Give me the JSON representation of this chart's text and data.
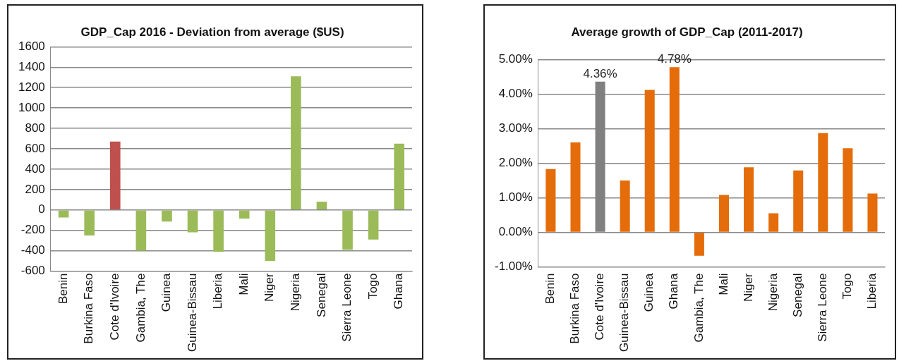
{
  "chart_data": [
    {
      "type": "bar",
      "title": "GDP_Cap 2016 - Deviation from average ($US)",
      "categories": [
        "Benin",
        "Burkina Faso",
        "Cote d'Ivoire",
        "Gambia, The",
        "Guinea",
        "Guinea-Bissau",
        "Liberia",
        "Mali",
        "Niger",
        "Nigeria",
        "Senegal",
        "Sierra Leone",
        "Togo",
        "Ghana"
      ],
      "values": [
        -75,
        -250,
        670,
        -400,
        -115,
        -220,
        -410,
        -85,
        -500,
        1310,
        82,
        -390,
        -290,
        650
      ],
      "colors": [
        "#9bbb59",
        "#9bbb59",
        "#c0504d",
        "#9bbb59",
        "#9bbb59",
        "#9bbb59",
        "#9bbb59",
        "#9bbb59",
        "#9bbb59",
        "#9bbb59",
        "#9bbb59",
        "#9bbb59",
        "#9bbb59",
        "#9bbb59"
      ],
      "ylim": [
        -600,
        1600
      ],
      "yticks": [
        -600,
        -400,
        -200,
        0,
        200,
        400,
        600,
        800,
        1000,
        1200,
        1400,
        1600
      ],
      "grid": "y"
    },
    {
      "type": "bar",
      "title": "Average growth of GDP_Cap (2011-2017)",
      "categories": [
        "Benin",
        "Burkina Faso",
        "Cote d'Ivoire",
        "Guinea-Bissau",
        "Guinea",
        "Ghana",
        "Gambia, The",
        "Mali",
        "Niger",
        "Nigeria",
        "Senegal",
        "Sierra Leone",
        "Togo",
        "Liberia"
      ],
      "values": [
        1.83,
        2.6,
        4.36,
        1.5,
        4.12,
        4.78,
        -0.68,
        1.08,
        1.88,
        0.55,
        1.79,
        2.87,
        2.43,
        1.12
      ],
      "colors": [
        "#e46c0a",
        "#e46c0a",
        "#808080",
        "#e46c0a",
        "#e46c0a",
        "#e46c0a",
        "#e46c0a",
        "#e46c0a",
        "#e46c0a",
        "#e46c0a",
        "#e46c0a",
        "#e46c0a",
        "#e46c0a",
        "#e46c0a"
      ],
      "value_labels": [
        null,
        null,
        "4.36%",
        null,
        null,
        "4.78%",
        null,
        null,
        null,
        null,
        null,
        null,
        null,
        null
      ],
      "ylim": [
        -1,
        5
      ],
      "yticks": [
        {
          "value": -1,
          "label": "-1.00%"
        },
        {
          "value": 0,
          "label": "0.00%"
        },
        {
          "value": 1,
          "label": "1.00%"
        },
        {
          "value": 2,
          "label": "2.00%"
        },
        {
          "value": 3,
          "label": "3.00%"
        },
        {
          "value": 4,
          "label": "4.00%"
        },
        {
          "value": 5,
          "label": "5.00%"
        }
      ],
      "grid": "y"
    }
  ]
}
